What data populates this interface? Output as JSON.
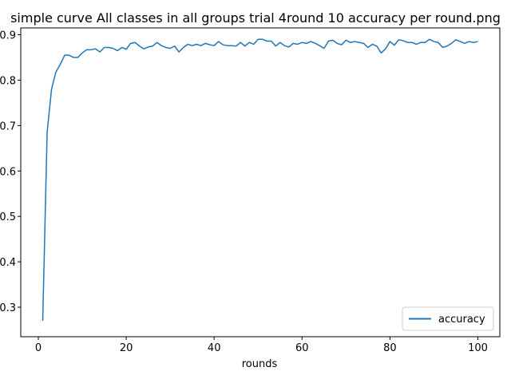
{
  "chart_data": {
    "type": "line",
    "title": "simple curve All classes in all groups trial 4round 10 accuracy per round.png",
    "xlabel": "rounds",
    "ylabel": "",
    "xlim": [
      -4,
      105
    ],
    "ylim": [
      0.235,
      0.915
    ],
    "xticks": [
      0,
      20,
      40,
      60,
      80,
      100
    ],
    "yticks": [
      0.3,
      0.4,
      0.5,
      0.6,
      0.7,
      0.8,
      0.9
    ],
    "ytick_labels": [
      "0.3",
      "0.4",
      "0.5",
      "0.6",
      "0.7",
      "0.8",
      "0.9"
    ],
    "grid": false,
    "legend_position": "lower-right",
    "series_color": "#1f77b4",
    "series": [
      {
        "name": "accuracy",
        "x": [
          1,
          2,
          3,
          4,
          5,
          6,
          7,
          8,
          9,
          10,
          11,
          12,
          13,
          14,
          15,
          16,
          17,
          18,
          19,
          20,
          21,
          22,
          23,
          24,
          25,
          26,
          27,
          28,
          29,
          30,
          31,
          32,
          33,
          34,
          35,
          36,
          37,
          38,
          39,
          40,
          41,
          42,
          43,
          44,
          45,
          46,
          47,
          48,
          49,
          50,
          51,
          52,
          53,
          54,
          55,
          56,
          57,
          58,
          59,
          60,
          61,
          62,
          63,
          64,
          65,
          66,
          67,
          68,
          69,
          70,
          71,
          72,
          73,
          74,
          75,
          76,
          77,
          78,
          79,
          80,
          81,
          82,
          83,
          84,
          85,
          86,
          87,
          88,
          89,
          90,
          91,
          92,
          93,
          94,
          95,
          96,
          97,
          98,
          99,
          100
        ],
        "values": [
          0.27,
          0.685,
          0.78,
          0.818,
          0.835,
          0.855,
          0.855,
          0.85,
          0.85,
          0.86,
          0.867,
          0.867,
          0.869,
          0.862,
          0.872,
          0.872,
          0.87,
          0.865,
          0.872,
          0.868,
          0.881,
          0.883,
          0.875,
          0.869,
          0.873,
          0.875,
          0.883,
          0.876,
          0.872,
          0.87,
          0.875,
          0.862,
          0.872,
          0.879,
          0.876,
          0.879,
          0.876,
          0.881,
          0.878,
          0.876,
          0.885,
          0.878,
          0.876,
          0.876,
          0.875,
          0.883,
          0.875,
          0.883,
          0.879,
          0.89,
          0.89,
          0.886,
          0.886,
          0.875,
          0.883,
          0.876,
          0.873,
          0.881,
          0.879,
          0.883,
          0.881,
          0.885,
          0.881,
          0.876,
          0.87,
          0.886,
          0.888,
          0.881,
          0.878,
          0.888,
          0.883,
          0.885,
          0.883,
          0.881,
          0.872,
          0.879,
          0.875,
          0.86,
          0.869,
          0.885,
          0.877,
          0.889,
          0.887,
          0.883,
          0.883,
          0.879,
          0.883,
          0.883,
          0.89,
          0.885,
          0.883,
          0.872,
          0.875,
          0.881,
          0.889,
          0.885,
          0.881,
          0.885,
          0.883,
          0.885
        ]
      }
    ]
  }
}
